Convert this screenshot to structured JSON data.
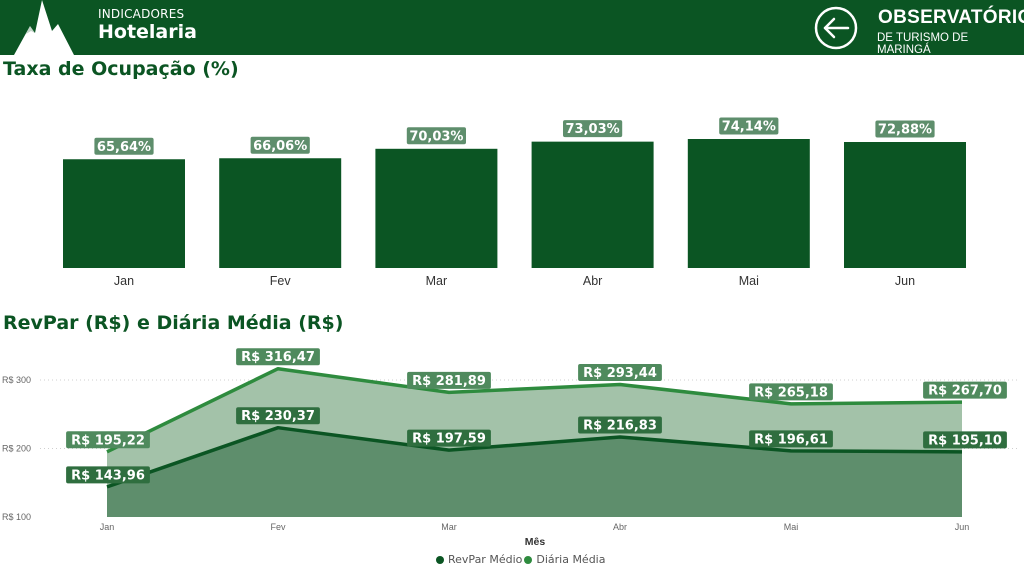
{
  "header": {
    "subtitle": "INDICADORES",
    "title": "Hotelaria",
    "brand_main": "OBSERVATÓRIO",
    "brand_sub": "DE TURISMO DE MARINGÁ",
    "back_icon": "arrow-left-circle-icon",
    "bg_color": "#0b5523"
  },
  "sections": {
    "occupancy_title": "Taxa de Ocupação (%)",
    "revpar_title": "RevPar (R$) e Diária Média (R$)"
  },
  "chart_data": [
    {
      "type": "bar",
      "title": "Taxa de Ocupação (%)",
      "categories": [
        "Jan",
        "Fev",
        "Mar",
        "Abr",
        "Mai",
        "Jun"
      ],
      "values": [
        65.64,
        66.06,
        70.03,
        73.03,
        74.14,
        72.88
      ],
      "data_labels": [
        "65,64%",
        "66,06%",
        "70,03%",
        "73,03%",
        "74,14%",
        "72,88%"
      ],
      "color": "#0b5523",
      "grid": false
    },
    {
      "type": "area",
      "title": "RevPar (R$) e Diária Média (R$)",
      "categories": [
        "Jan",
        "Fev",
        "Mar",
        "Abr",
        "Mai",
        "Jun"
      ],
      "xlabel": "Mês",
      "ylim": [
        100,
        330
      ],
      "yticks": [
        {
          "value": 100,
          "label": "R$ 100"
        },
        {
          "value": 200,
          "label": "R$ 200"
        },
        {
          "value": 300,
          "label": "R$ 300"
        }
      ],
      "series": [
        {
          "name": "RevPar Médio",
          "values": [
            143.96,
            230.37,
            197.59,
            216.83,
            196.61,
            195.1
          ],
          "labels": [
            "R$ 143,96",
            "R$ 230,37",
            "R$ 197,59",
            "R$ 216,83",
            "R$ 196,61",
            "R$ 195,10"
          ],
          "line_color": "#0b5523",
          "fill_color": "#5e8e6c",
          "label_bg": "#2f6e3f"
        },
        {
          "name": "Diária Média",
          "values": [
            195.22,
            316.47,
            281.89,
            293.44,
            265.18,
            267.7
          ],
          "labels": [
            "R$ 195,22",
            "R$ 316,47",
            "R$ 281,89",
            "R$ 293,44",
            "R$ 265,18",
            "R$ 267,70"
          ],
          "line_color": "#2e8b3e",
          "fill_color": "#a3c2a9",
          "label_bg": "#4f8a5d"
        }
      ],
      "legend_position": "bottom-center",
      "grid": true
    }
  ]
}
